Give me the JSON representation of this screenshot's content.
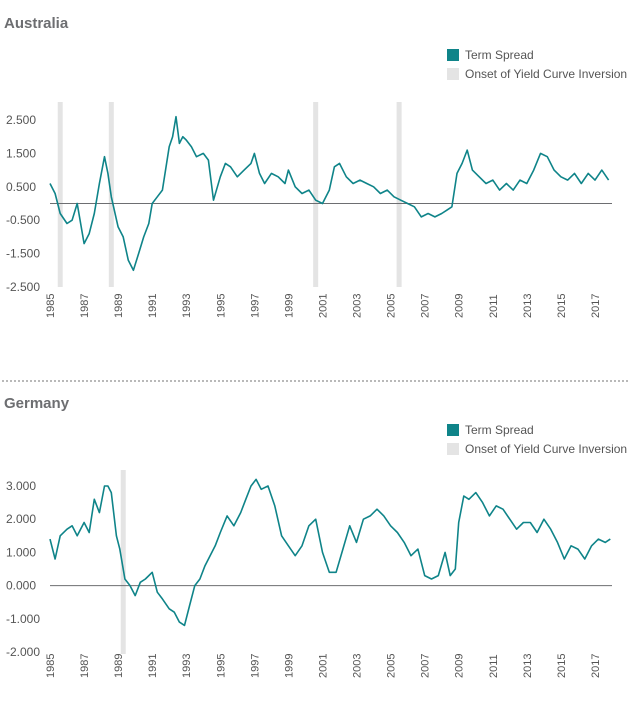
{
  "colors": {
    "term_spread": "#0f8489",
    "inversion": "#e4e4e4",
    "zero_line": "#6d6e71",
    "text": "#555555"
  },
  "legend": {
    "series_label": "Term Spread",
    "band_label": "Onset of Yield Curve Inversion"
  },
  "chart_data": [
    {
      "type": "line",
      "title": "Australia",
      "ylim": [
        -2.5,
        2.8
      ],
      "yticks": [
        2.5,
        1.5,
        0.5,
        -0.5,
        -1.5,
        -2.5
      ],
      "ytick_labels": [
        "2.500",
        "1.500",
        "0.500",
        "-0.500",
        "-1.500",
        "-2.500"
      ],
      "xlim": [
        1985,
        2018
      ],
      "xtick_labels": [
        "1985",
        "1987",
        "1989",
        "1991",
        "1993",
        "1995",
        "1997",
        "1999",
        "2001",
        "2003",
        "2005",
        "2007",
        "2009",
        "2011",
        "2013",
        "2015",
        "2017"
      ],
      "inversion_onsets": [
        1985.6,
        1988.6,
        2000.6,
        2005.5
      ],
      "series": [
        {
          "name": "Term Spread",
          "x": [
            1985.0,
            1985.3,
            1985.6,
            1986.0,
            1986.3,
            1986.6,
            1987.0,
            1987.3,
            1987.6,
            1987.9,
            1988.2,
            1988.4,
            1988.6,
            1989.0,
            1989.3,
            1989.6,
            1989.9,
            1990.2,
            1990.5,
            1990.8,
            1991.0,
            1991.3,
            1991.6,
            1992.0,
            1992.2,
            1992.4,
            1992.6,
            1992.8,
            1993.0,
            1993.3,
            1993.6,
            1994.0,
            1994.3,
            1994.6,
            1995.0,
            1995.3,
            1995.6,
            1996.0,
            1996.4,
            1996.8,
            1997.0,
            1997.3,
            1997.6,
            1998.0,
            1998.4,
            1998.8,
            1999.0,
            1999.4,
            1999.8,
            2000.2,
            2000.6,
            2001.0,
            2001.4,
            2001.7,
            2002.0,
            2002.4,
            2002.8,
            2003.2,
            2003.6,
            2004.0,
            2004.4,
            2004.8,
            2005.2,
            2005.6,
            2006.0,
            2006.4,
            2006.8,
            2007.2,
            2007.6,
            2008.0,
            2008.3,
            2008.6,
            2008.9,
            2009.2,
            2009.5,
            2009.8,
            2010.2,
            2010.6,
            2011.0,
            2011.4,
            2011.8,
            2012.2,
            2012.6,
            2013.0,
            2013.4,
            2013.8,
            2014.2,
            2014.6,
            2015.0,
            2015.4,
            2015.8,
            2016.2,
            2016.6,
            2017.0,
            2017.4,
            2017.8
          ],
          "values": [
            0.6,
            0.3,
            -0.3,
            -0.6,
            -0.5,
            0.0,
            -1.2,
            -0.9,
            -0.3,
            0.6,
            1.4,
            0.9,
            0.2,
            -0.7,
            -1.0,
            -1.7,
            -2.0,
            -1.5,
            -1.0,
            -0.6,
            0.0,
            0.2,
            0.4,
            1.7,
            2.0,
            2.6,
            1.8,
            2.0,
            1.9,
            1.7,
            1.4,
            1.5,
            1.3,
            0.1,
            0.8,
            1.2,
            1.1,
            0.8,
            1.0,
            1.2,
            1.5,
            0.9,
            0.6,
            0.9,
            0.8,
            0.6,
            1.0,
            0.5,
            0.3,
            0.4,
            0.1,
            0.0,
            0.4,
            1.1,
            1.2,
            0.8,
            0.6,
            0.7,
            0.6,
            0.5,
            0.3,
            0.4,
            0.2,
            0.1,
            0.0,
            -0.1,
            -0.4,
            -0.3,
            -0.4,
            -0.3,
            -0.2,
            -0.1,
            0.9,
            1.2,
            1.6,
            1.0,
            0.8,
            0.6,
            0.7,
            0.4,
            0.6,
            0.4,
            0.7,
            0.6,
            1.0,
            1.5,
            1.4,
            1.0,
            0.8,
            0.7,
            0.9,
            0.6,
            0.9,
            0.7,
            1.0,
            0.7
          ]
        }
      ]
    },
    {
      "type": "line",
      "title": "Germany",
      "ylim": [
        -2.0,
        3.3
      ],
      "yticks": [
        3.0,
        2.0,
        1.0,
        0.0,
        -1.0,
        -2.0
      ],
      "ytick_labels": [
        "3.000",
        "2.000",
        "1.000",
        "0.000",
        "-1.000",
        "-2.000"
      ],
      "xlim": [
        1985,
        2018
      ],
      "xtick_labels": [
        "1985",
        "1987",
        "1989",
        "1991",
        "1993",
        "1995",
        "1997",
        "1999",
        "2001",
        "2003",
        "2005",
        "2007",
        "2009",
        "2011",
        "2013",
        "2015",
        "2017"
      ],
      "inversion_onsets": [
        1989.3
      ],
      "series": [
        {
          "name": "Term Spread",
          "x": [
            1985.0,
            1985.3,
            1985.6,
            1986.0,
            1986.3,
            1986.6,
            1987.0,
            1987.3,
            1987.6,
            1987.9,
            1988.2,
            1988.4,
            1988.6,
            1988.9,
            1989.1,
            1989.4,
            1989.7,
            1990.0,
            1990.3,
            1990.6,
            1991.0,
            1991.3,
            1991.6,
            1992.0,
            1992.3,
            1992.6,
            1992.9,
            1993.2,
            1993.5,
            1993.8,
            1994.1,
            1994.4,
            1994.7,
            1995.0,
            1995.4,
            1995.8,
            1996.2,
            1996.5,
            1996.8,
            1997.1,
            1997.4,
            1997.8,
            1998.2,
            1998.6,
            1999.0,
            1999.4,
            1999.8,
            2000.2,
            2000.6,
            2001.0,
            2001.4,
            2001.8,
            2002.2,
            2002.6,
            2003.0,
            2003.4,
            2003.8,
            2004.2,
            2004.6,
            2005.0,
            2005.4,
            2005.8,
            2006.2,
            2006.6,
            2007.0,
            2007.4,
            2007.8,
            2008.2,
            2008.5,
            2008.8,
            2009.0,
            2009.3,
            2009.6,
            2010.0,
            2010.4,
            2010.8,
            2011.2,
            2011.6,
            2012.0,
            2012.4,
            2012.8,
            2013.2,
            2013.6,
            2014.0,
            2014.4,
            2014.8,
            2015.2,
            2015.6,
            2016.0,
            2016.4,
            2016.8,
            2017.2,
            2017.6,
            2017.9
          ],
          "values": [
            1.4,
            0.8,
            1.5,
            1.7,
            1.8,
            1.5,
            1.9,
            1.6,
            2.6,
            2.2,
            3.0,
            3.0,
            2.8,
            1.5,
            1.1,
            0.2,
            0.0,
            -0.3,
            0.1,
            0.2,
            0.4,
            -0.2,
            -0.4,
            -0.7,
            -0.8,
            -1.1,
            -1.2,
            -0.6,
            0.0,
            0.2,
            0.6,
            0.9,
            1.2,
            1.6,
            2.1,
            1.8,
            2.2,
            2.6,
            3.0,
            3.2,
            2.9,
            3.0,
            2.4,
            1.5,
            1.2,
            0.9,
            1.2,
            1.8,
            2.0,
            1.0,
            0.4,
            0.4,
            1.1,
            1.8,
            1.3,
            2.0,
            2.1,
            2.3,
            2.1,
            1.8,
            1.6,
            1.3,
            0.9,
            1.1,
            0.3,
            0.2,
            0.3,
            1.0,
            0.3,
            0.5,
            1.9,
            2.7,
            2.6,
            2.8,
            2.5,
            2.1,
            2.4,
            2.3,
            2.0,
            1.7,
            1.9,
            1.9,
            1.6,
            2.0,
            1.7,
            1.3,
            0.8,
            1.2,
            1.1,
            0.8,
            1.2,
            1.4,
            1.3,
            1.4
          ]
        }
      ]
    }
  ]
}
